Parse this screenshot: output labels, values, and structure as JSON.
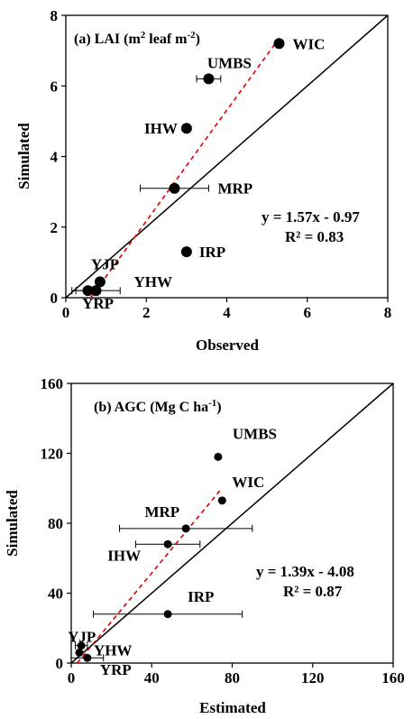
{
  "chart_data": [
    {
      "type": "scatter",
      "title_main": "(a) LAI (m",
      "title_sup1": "2",
      "title_mid": " leaf m",
      "title_sup2": "-2",
      "title_end": ")",
      "xlabel": "Observed",
      "ylabel": "Simulated",
      "xlim": [
        0,
        8
      ],
      "ylim": [
        0,
        8
      ],
      "xticks": [
        "0",
        "2",
        "4",
        "6",
        "8"
      ],
      "yticks": [
        "0",
        "2",
        "4",
        "6",
        "8"
      ],
      "regression": {
        "slope": 1.57,
        "intercept": -0.97,
        "x_range": [
          0.62,
          5.3
        ]
      },
      "equation": "y = 1.57x - 0.97",
      "r2_label": "R² = 0.83",
      "points": [
        {
          "site": "WIC",
          "x": 5.3,
          "y": 7.2,
          "xerr": 0
        },
        {
          "site": "UMBS",
          "x": 3.55,
          "y": 6.2,
          "xerr": 0.3
        },
        {
          "site": "IHW",
          "x": 3.0,
          "y": 4.8,
          "xerr": 0
        },
        {
          "site": "MRP",
          "x": 2.7,
          "y": 3.1,
          "xerr": 0.85
        },
        {
          "site": "IRP",
          "x": 3.0,
          "y": 1.3,
          "xerr": 0
        },
        {
          "site": "YJP",
          "x": 0.85,
          "y": 0.45,
          "xerr": 0
        },
        {
          "site": "YHW",
          "x": 0.75,
          "y": 0.2,
          "xerr": 0.6
        },
        {
          "site": "YRP",
          "x": 0.55,
          "y": 0.2,
          "xerr": 0.3
        }
      ]
    },
    {
      "type": "scatter",
      "title_main": "(b) AGC (Mg C ha",
      "title_sup1": "-1",
      "title_end": ")",
      "xlabel": "Estimated",
      "ylabel": "Simulated",
      "xlim": [
        0,
        160
      ],
      "ylim": [
        0,
        160
      ],
      "xticks": [
        "0",
        "40",
        "80",
        "120",
        "160"
      ],
      "yticks": [
        "0",
        "40",
        "80",
        "120",
        "160"
      ],
      "regression": {
        "slope": 1.39,
        "intercept": -4.08,
        "x_range": [
          2.94,
          75
        ]
      },
      "equation": "y = 1.39x - 4.08",
      "r2_label": "R² = 0.87",
      "points": [
        {
          "site": "UMBS",
          "x": 73,
          "y": 118,
          "xerr": 0
        },
        {
          "site": "WIC",
          "x": 75,
          "y": 93,
          "xerr": 0
        },
        {
          "site": "MRP",
          "x": 57,
          "y": 77,
          "xerr": 33
        },
        {
          "site": "IHW",
          "x": 48,
          "y": 68,
          "xerr": 16
        },
        {
          "site": "IRP",
          "x": 48,
          "y": 28,
          "xerr": 37
        },
        {
          "site": "YJP",
          "x": 5,
          "y": 10,
          "xerr": 3
        },
        {
          "site": "YHW",
          "x": 4,
          "y": 6,
          "xerr": 0
        },
        {
          "site": "YRP",
          "x": 8,
          "y": 3,
          "xerr": 8
        }
      ]
    }
  ]
}
